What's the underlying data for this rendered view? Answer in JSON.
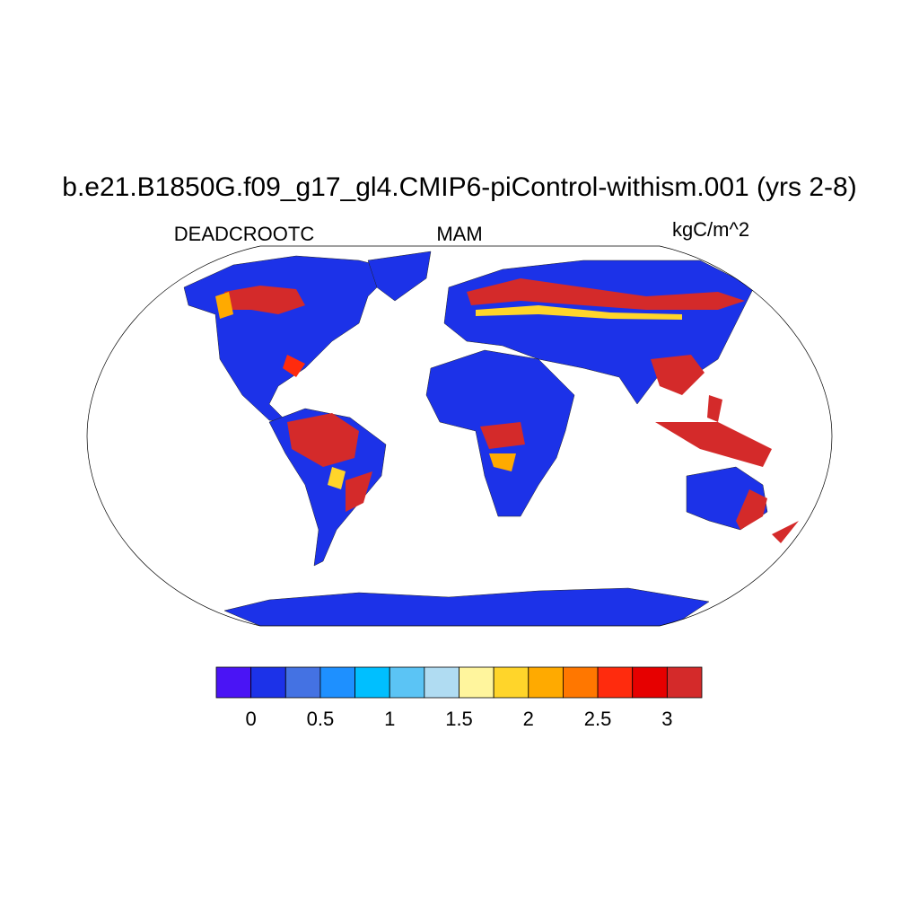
{
  "title": "b.e21.B1850G.f09_g17_gl4.CMIP6-piControl-withism.001 (yrs 2-8)",
  "left_label": "DEADCROOTC",
  "center_label": "MAM",
  "right_label": "kgC/m^2",
  "colorbar": {
    "colors": [
      "#4a14f5",
      "#1c32e8",
      "#4472e3",
      "#1e90ff",
      "#00bfff",
      "#5bc4f5",
      "#b0dcf2",
      "#fff59d",
      "#ffd52a",
      "#ffaa00",
      "#ff7700",
      "#ff2b0d",
      "#e60000",
      "#d42a2a"
    ],
    "xlim": [
      -0.25,
      3.25
    ],
    "xticks": [
      0,
      0.5,
      1,
      1.5,
      2,
      2.5,
      3
    ]
  }
}
